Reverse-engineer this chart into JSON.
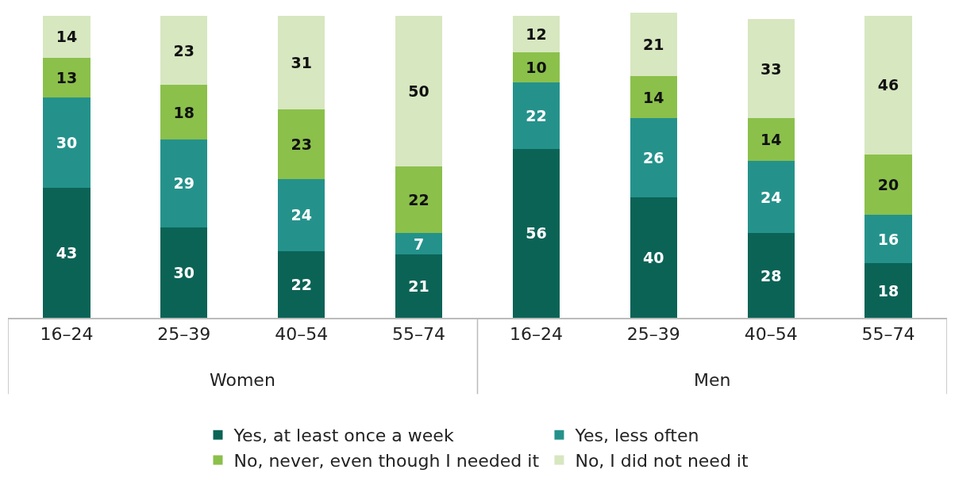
{
  "chart_data": {
    "type": "bar",
    "stacked": true,
    "data_labels": true,
    "tick_labels": "x",
    "legend": "bottom",
    "grid": false,
    "categories": [
      "16–24",
      "25–39",
      "40–54",
      "55–74",
      "16–24",
      "25–39",
      "40–54",
      "55–74"
    ],
    "ylim": [
      0,
      101
    ],
    "annotations": [
      "Women",
      "Men"
    ],
    "series": [
      {
        "name": "Yes, at least once a week",
        "color": "#0b6356",
        "values": [
          43,
          30,
          22,
          21,
          56,
          40,
          28,
          18
        ]
      },
      {
        "name": "Yes, less often",
        "color": "#24928b",
        "values": [
          30,
          29,
          24,
          7,
          22,
          26,
          24,
          16
        ]
      },
      {
        "name": "No, never, even though I needed it",
        "color": "#8bc04b",
        "values": [
          13,
          18,
          23,
          22,
          10,
          14,
          14,
          20
        ]
      },
      {
        "name": "No, I did not need it",
        "color": "#d7e7c0",
        "values": [
          14,
          23,
          31,
          50,
          12,
          21,
          33,
          46
        ]
      }
    ]
  }
}
